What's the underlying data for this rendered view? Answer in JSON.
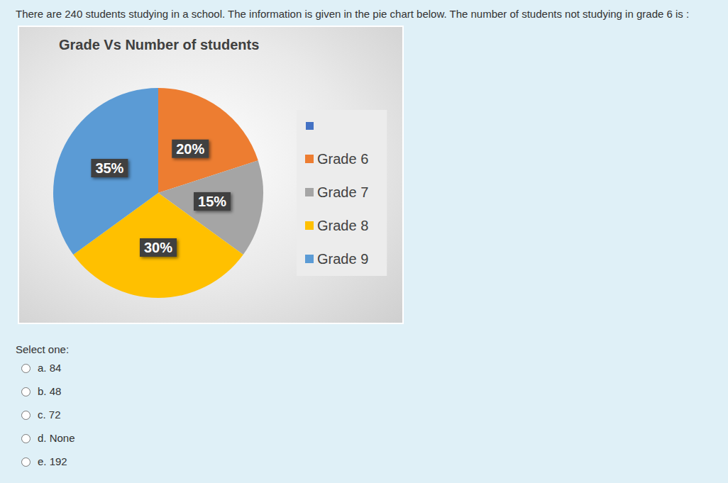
{
  "question": "There are 240 students studying in a school. The information is given in the pie chart below. The number of students not studying in grade 6 is :",
  "chart_data": {
    "type": "pie",
    "title": "Grade Vs Number of students",
    "categories": [
      "Grade 6",
      "Grade 7",
      "Grade 8",
      "Grade 9"
    ],
    "values": [
      20,
      15,
      30,
      35
    ],
    "value_labels": [
      "20%",
      "15%",
      "30%",
      "35%"
    ],
    "colors": [
      "#ed7d31",
      "#a5a5a5",
      "#ffc000",
      "#5b9bd5"
    ],
    "data_labels": true,
    "legend": "right"
  },
  "prompt": "Select one:",
  "options": [
    "a. 84",
    "b. 48",
    "c. 72",
    "d. None",
    "e. 192"
  ]
}
